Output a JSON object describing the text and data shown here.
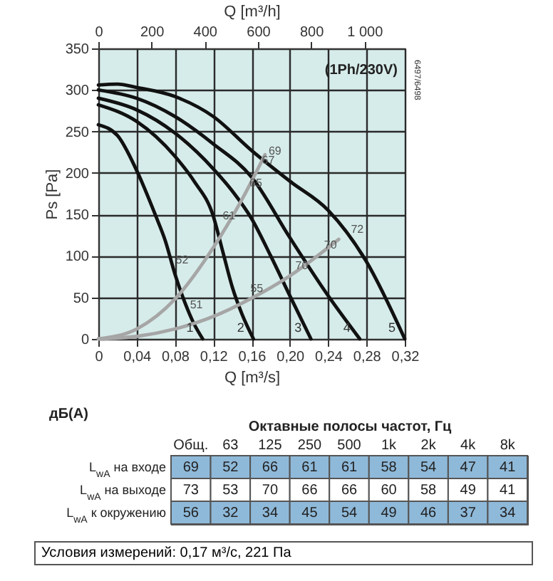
{
  "chart_data": [
    {
      "type": "line",
      "xlabel": "Q [m³/s]",
      "x2label": "Q [m³/h]",
      "ylabel": "Ps [Pa]",
      "xlim": [
        0,
        0.32
      ],
      "xticks": [
        0,
        {
          "value": 0.04,
          "label": "0,04"
        },
        {
          "value": 0.08,
          "label": "0,08"
        },
        {
          "value": 0.12,
          "label": "0,12"
        },
        {
          "value": 0.16,
          "label": "0,16"
        },
        {
          "value": 0.2,
          "label": "0,20"
        },
        {
          "value": 0.24,
          "label": "0,24"
        },
        {
          "value": 0.28,
          "label": "0,28"
        },
        {
          "value": 0.32,
          "label": "0,32"
        }
      ],
      "x2lim": [
        0,
        1152
      ],
      "x2ticks": [
        0,
        200,
        400,
        600,
        800,
        {
          "value": 1000,
          "label": "1 000"
        }
      ],
      "ylim": [
        0,
        350
      ],
      "yticks": [
        0,
        50,
        100,
        150,
        200,
        250,
        300,
        350
      ],
      "grid": true,
      "legend": false,
      "series": [
        {
          "name": "1",
          "color": "#111111",
          "x": [
            0,
            0.02,
            0.04,
            0.06,
            0.07,
            0.08,
            0.09,
            0.1,
            0.109
          ],
          "values": [
            258,
            245,
            203,
            148,
            118,
            78,
            45,
            18,
            0
          ]
        },
        {
          "name": "2",
          "color": "#111111",
          "x": [
            0,
            0.04,
            0.08,
            0.1,
            0.12,
            0.13,
            0.14,
            0.15,
            0.162
          ],
          "values": [
            282,
            262,
            220,
            190,
            148,
            105,
            62,
            30,
            0
          ]
        },
        {
          "name": "3",
          "color": "#111111",
          "x": [
            0,
            0.04,
            0.08,
            0.12,
            0.14,
            0.16,
            0.18,
            0.2,
            0.222
          ],
          "values": [
            290,
            276,
            248,
            205,
            178,
            145,
            100,
            52,
            0
          ]
        },
        {
          "name": "4",
          "color": "#111111",
          "x": [
            0,
            0.04,
            0.08,
            0.12,
            0.16,
            0.2,
            0.24,
            0.273
          ],
          "values": [
            300,
            290,
            268,
            235,
            195,
            122,
            52,
            0
          ]
        },
        {
          "name": "5",
          "color": "#111111",
          "x": [
            0,
            0.02,
            0.04,
            0.08,
            0.12,
            0.16,
            0.2,
            0.24,
            0.28,
            0.32
          ],
          "values": [
            306,
            307,
            303,
            292,
            268,
            227,
            190,
            155,
            93,
            0
          ]
        },
        {
          "color": "#a6a6a6",
          "x": [
            0,
            0.04,
            0.08,
            0.12,
            0.15,
            0.174
          ],
          "values": [
            0,
            12,
            48,
            110,
            168,
            222
          ]
        },
        {
          "color": "#a6a6a6",
          "x": [
            0,
            0.04,
            0.08,
            0.12,
            0.16,
            0.2,
            0.251
          ],
          "values": [
            0,
            3,
            12,
            27,
            49,
            76,
            120
          ]
        }
      ],
      "annotations": [
        "(1Ph/230V)",
        "6497/6498",
        {
          "text": "52",
          "x": 0.077,
          "y": 91
        },
        {
          "text": "51",
          "x": 0.092,
          "y": 37
        },
        {
          "text": "61",
          "x": 0.126,
          "y": 144
        },
        {
          "text": "65",
          "x": 0.154,
          "y": 184
        },
        {
          "text": "67",
          "x": 0.167,
          "y": 211
        },
        {
          "text": "69",
          "x": 0.174,
          "y": 222
        },
        {
          "text": "55",
          "x": 0.155,
          "y": 57
        },
        {
          "text": "70",
          "x": 0.202,
          "y": 84
        },
        {
          "text": "70",
          "x": 0.232,
          "y": 109
        },
        {
          "text": "72",
          "x": 0.26,
          "y": 128
        }
      ]
    },
    {
      "type": "heatmap",
      "title": "дБ(А)",
      "xlabel": "Октавные полосы частот, Гц",
      "categories": [
        "Общ.",
        "63",
        "125",
        "250",
        "500",
        "1k",
        "2k",
        "4k",
        "8k"
      ],
      "y_categories": [
        "L$_{wA}$ на входе",
        "L$_{wA}$ на выходе",
        "L$_{wA}$ к окружению"
      ],
      "cells": [
        [
          69,
          52,
          66,
          61,
          61,
          58,
          54,
          47,
          41
        ],
        [
          73,
          53,
          70,
          66,
          66,
          60,
          58,
          49,
          41
        ],
        [
          56,
          32,
          34,
          45,
          54,
          49,
          46,
          37,
          34
        ]
      ],
      "data_labels": true,
      "annotations": [
        "Условия измерений: 0,17 м³/с, 221 Па"
      ]
    }
  ]
}
